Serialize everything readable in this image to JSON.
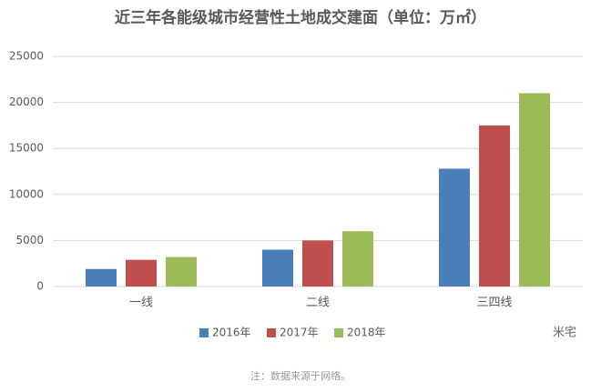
{
  "chart_data": {
    "type": "bar",
    "title": "近三年各能级城市经营性土地成交建面（单位：万㎡）",
    "categories": [
      "一线",
      "二线",
      "三四线"
    ],
    "series": [
      {
        "name": "2016年",
        "color": "#4a7ebb",
        "values": [
          1900,
          4000,
          12800
        ]
      },
      {
        "name": "2017年",
        "color": "#c0504d",
        "values": [
          2900,
          5000,
          17500
        ]
      },
      {
        "name": "2018年",
        "color": "#9bbb59",
        "values": [
          3200,
          6000,
          21000
        ]
      }
    ],
    "ylim": [
      0,
      25000
    ],
    "yticks": [
      0,
      5000,
      10000,
      15000,
      20000,
      25000
    ],
    "grid": true,
    "legend": "bottom",
    "watermark": "米宅",
    "note": "注：数据来源于网络。"
  }
}
